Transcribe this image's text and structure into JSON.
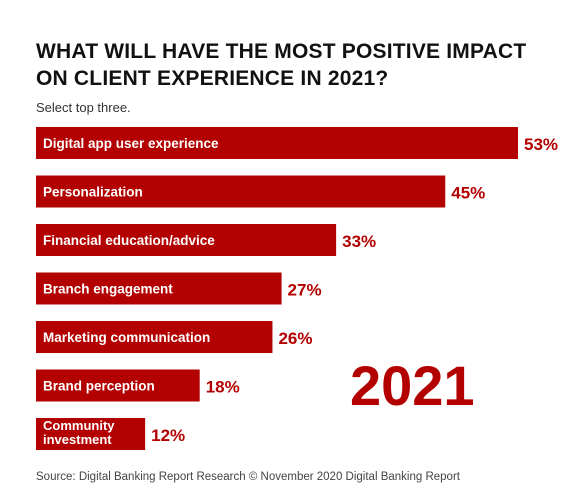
{
  "header": {
    "title_line1": "WHAT WILL HAVE THE MOST POSITIVE IMPACT",
    "title_line2": "ON CLIENT EXPERIENCE IN 2021?",
    "subtitle": "Select top three."
  },
  "year_label": "2021",
  "source": "Source: Digital Banking Report Research © November 2020 Digital Banking Report",
  "colors": {
    "bar": "#b30000",
    "bar_label": "#ffffff",
    "value_label": "#b30000"
  },
  "chart_data": {
    "type": "bar",
    "orientation": "horizontal",
    "categories": [
      [
        "Digital app user experience"
      ],
      [
        "Personalization"
      ],
      [
        "Financial education/advice"
      ],
      [
        "Branch engagement"
      ],
      [
        "Marketing communication"
      ],
      [
        "Brand perception"
      ],
      [
        "Community",
        "investment"
      ]
    ],
    "values": [
      53,
      45,
      33,
      27,
      26,
      18,
      12
    ],
    "value_labels": [
      "53%",
      "45%",
      "33%",
      "27%",
      "26%",
      "18%",
      "12%"
    ],
    "xlim": [
      0,
      53
    ],
    "grid": false,
    "legend": "none"
  }
}
